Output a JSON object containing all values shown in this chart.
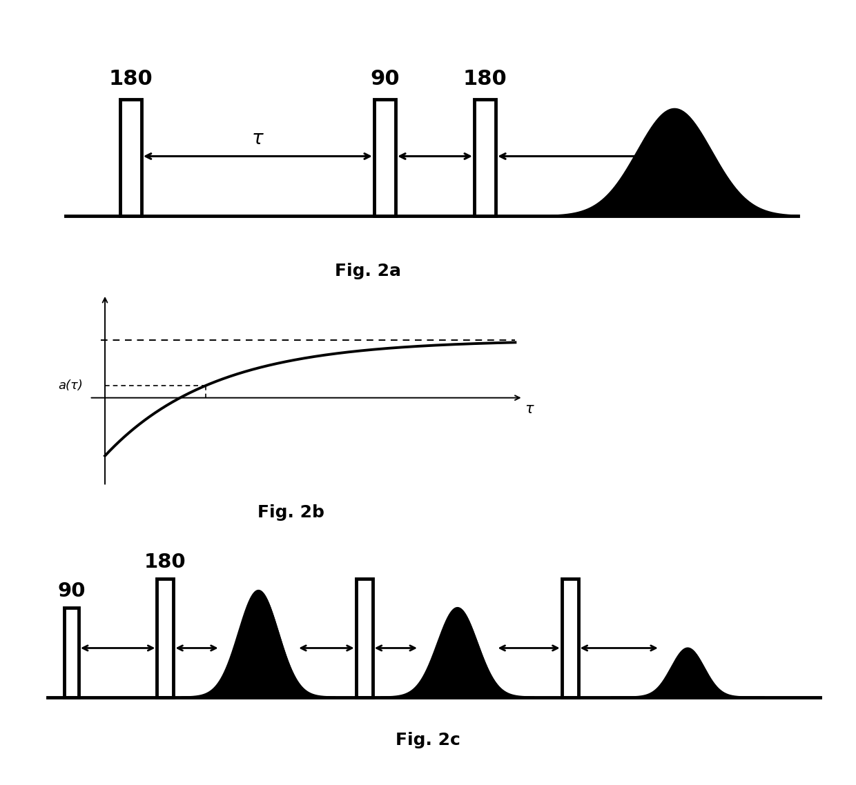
{
  "bg_color": "#ffffff",
  "fig_width": 12.4,
  "fig_height": 11.38,
  "fig2a_title": "Fig. 2a",
  "fig2b_title": "Fig. 2b",
  "fig2c_title": "Fig. 2c",
  "label_180a": "180",
  "label_90a": "90",
  "label_180b": "180",
  "label_tau": "τ",
  "label_atau": "a(τ)",
  "label_tau_axis": "τ",
  "label_90c": "90",
  "label_180c": "180"
}
